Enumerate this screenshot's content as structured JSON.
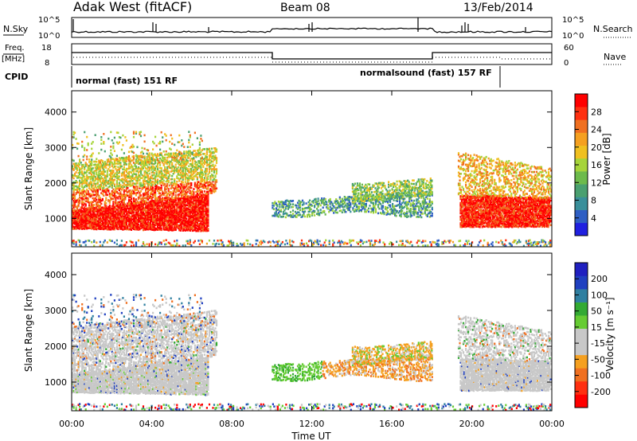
{
  "header": {
    "station": "Adak West (fitACF)",
    "beam": "Beam 08",
    "date": "13/Feb/2014"
  },
  "panels": {
    "nsky": {
      "label": "N.Sky",
      "ytop": "10^5",
      "ybottom": "10^0",
      "right_label": "N.Search",
      "right_ytop": "10^5",
      "right_ybottom": "10^0"
    },
    "freq": {
      "label_line1": "Freq.",
      "label_line2": "[MHz]",
      "ytop": "18",
      "ybottom": "8",
      "right_label": "Nave",
      "right_ytop": "60",
      "right_ybottom": "0"
    },
    "cpid": {
      "label": "CPID",
      "mode1": "normal (fast) 151 RF",
      "mode2": "normalsound (fast) 157 RF"
    }
  },
  "colors": {
    "power": [
      "#2020e0",
      "#2f5fc4",
      "#3a8f9a",
      "#4aa070",
      "#6dbb4c",
      "#a6d43a",
      "#f0c020",
      "#f5a020",
      "#f07020",
      "#ff3010",
      "#ff0000"
    ],
    "velocity": [
      "#ff0000",
      "#ff3010",
      "#f07020",
      "#f5a020",
      "#c8c8c8",
      "#c8c8c8",
      "#66cc33",
      "#33aa33",
      "#2f7fa0",
      "#2040c0",
      "#2020c0"
    ]
  },
  "chart_data": [
    {
      "type": "heatmap",
      "name": "power",
      "ylabel": "Slant Range [km]",
      "yticks": [
        "1000",
        "2000",
        "3000",
        "4000"
      ],
      "ylim": [
        200,
        4600
      ],
      "xlim": [
        0,
        24
      ],
      "colorbar": {
        "label": "Power [dB]",
        "ticks": [
          "28",
          "24",
          "20",
          "16",
          "12",
          "8",
          "4"
        ],
        "range": [
          0,
          30
        ]
      },
      "echo_regions": [
        {
          "t0": 0.0,
          "t1": 7.0,
          "r0": 750,
          "r1": 1400,
          "level": "high"
        },
        {
          "t0": 0.0,
          "t1": 7.0,
          "r0": 1400,
          "r1": 2600,
          "level": "mid"
        },
        {
          "t0": 10.0,
          "t1": 18.0,
          "r0": 1200,
          "r1": 2200,
          "level": "low-mid"
        },
        {
          "t0": 19.3,
          "t1": 24.0,
          "r0": 800,
          "r1": 1700,
          "level": "high"
        },
        {
          "t0": 19.3,
          "t1": 24.0,
          "r0": 1700,
          "r1": 2600,
          "level": "mid"
        }
      ]
    },
    {
      "type": "heatmap",
      "name": "velocity",
      "ylabel": "Slant Range [km]",
      "yticks": [
        "1000",
        "2000",
        "3000",
        "4000"
      ],
      "ylim": [
        200,
        4600
      ],
      "xlim": [
        0,
        24
      ],
      "colorbar": {
        "label": "Velocity [m s⁻¹]",
        "ticks": [
          "200",
          "100",
          "50",
          "15",
          "-15",
          "-50",
          "-100",
          "-200"
        ],
        "range": [
          -250,
          250
        ]
      }
    }
  ],
  "xaxis": {
    "label": "Time UT",
    "ticks": [
      "00:00",
      "04:00",
      "08:00",
      "12:00",
      "16:00",
      "20:00",
      "00:00"
    ]
  }
}
